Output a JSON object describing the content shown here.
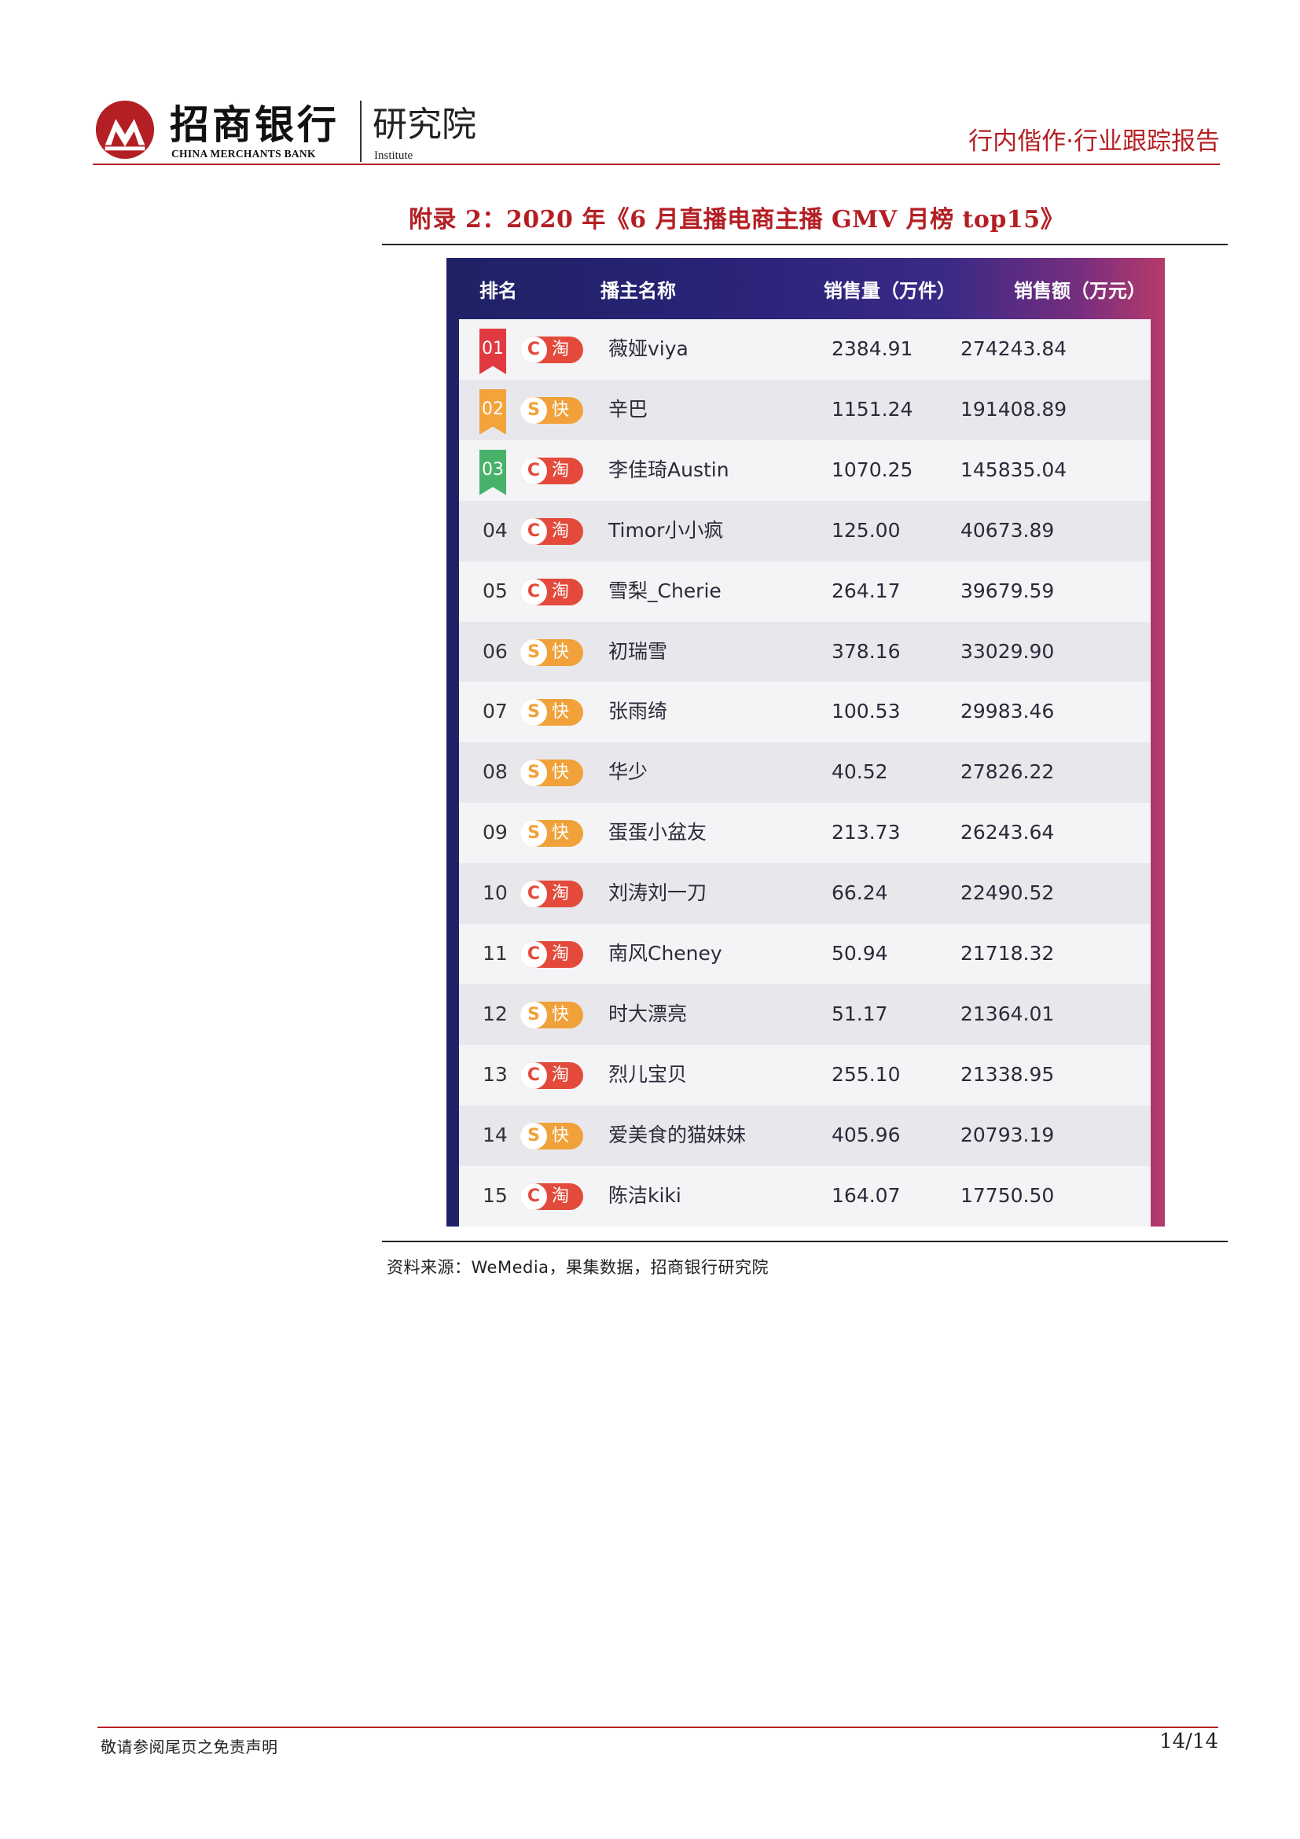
{
  "header": {
    "logo_cn": "招商银行",
    "logo_en": "CHINA MERCHANTS BANK",
    "institute_cn": "研究院",
    "institute_en": "Institute",
    "report_type": "行内偕作·行业跟踪报告",
    "brand_color": "#b41f24"
  },
  "figure": {
    "title": "附录 2：2020 年《6 月直播电商主播 GMV 月榜 top15》",
    "source": "资料来源：WeMedia，果集数据，招商银行研究院"
  },
  "table": {
    "columns": [
      "排名",
      "播主名称",
      "销售量（万件）",
      "销售额（万元）"
    ],
    "platforms": {
      "tao": {
        "glyph": "C",
        "label": "淘",
        "color": "#e34a3b",
        "icon": "taobao-icon"
      },
      "kuai": {
        "glyph": "S",
        "label": "快",
        "color": "#f0a13a",
        "icon": "kuaishou-icon"
      }
    },
    "rows": [
      {
        "rank": "01",
        "platform": "tao",
        "platform_label": "淘",
        "name": "薇娅viya",
        "volume": "2384.91",
        "amount": "274243.84",
        "ribbon_color": "#e0393f"
      },
      {
        "rank": "02",
        "platform": "kuai",
        "platform_label": "快",
        "name": "辛巴",
        "volume": "1151.24",
        "amount": "191408.89",
        "ribbon_color": "#f2a33a"
      },
      {
        "rank": "03",
        "platform": "tao",
        "platform_label": "淘",
        "name": "李佳琦Austin",
        "volume": "1070.25",
        "amount": "145835.04",
        "ribbon_color": "#48b26a"
      },
      {
        "rank": "04",
        "platform": "tao",
        "platform_label": "淘",
        "name": "Timor小小疯",
        "volume": "125.00",
        "amount": "40673.89"
      },
      {
        "rank": "05",
        "platform": "tao",
        "platform_label": "淘",
        "name": "雪梨_Cherie",
        "volume": "264.17",
        "amount": "39679.59"
      },
      {
        "rank": "06",
        "platform": "kuai",
        "platform_label": "快",
        "name": "初瑞雪",
        "volume": "378.16",
        "amount": "33029.90"
      },
      {
        "rank": "07",
        "platform": "kuai",
        "platform_label": "快",
        "name": "张雨绮",
        "volume": "100.53",
        "amount": "29983.46"
      },
      {
        "rank": "08",
        "platform": "kuai",
        "platform_label": "快",
        "name": "华少",
        "volume": "40.52",
        "amount": "27826.22"
      },
      {
        "rank": "09",
        "platform": "kuai",
        "platform_label": "快",
        "name": "蛋蛋小盆友",
        "volume": "213.73",
        "amount": "26243.64"
      },
      {
        "rank": "10",
        "platform": "tao",
        "platform_label": "淘",
        "name": "刘涛刘一刀",
        "volume": "66.24",
        "amount": "22490.52"
      },
      {
        "rank": "11",
        "platform": "tao",
        "platform_label": "淘",
        "name": "南风Cheney",
        "volume": "50.94",
        "amount": "21718.32"
      },
      {
        "rank": "12",
        "platform": "kuai",
        "platform_label": "快",
        "name": "时大漂亮",
        "volume": "51.17",
        "amount": "21364.01"
      },
      {
        "rank": "13",
        "platform": "tao",
        "platform_label": "淘",
        "name": "烈儿宝贝",
        "volume": "255.10",
        "amount": "21338.95"
      },
      {
        "rank": "14",
        "platform": "kuai",
        "platform_label": "快",
        "name": "爱美食的猫妹妹",
        "volume": "405.96",
        "amount": "20793.19"
      },
      {
        "rank": "15",
        "platform": "tao",
        "platform_label": "淘",
        "name": "陈洁kiki",
        "volume": "164.07",
        "amount": "17750.50"
      }
    ]
  },
  "footer": {
    "disclaimer": "敬请参阅尾页之免责声明",
    "page": "14/14"
  }
}
